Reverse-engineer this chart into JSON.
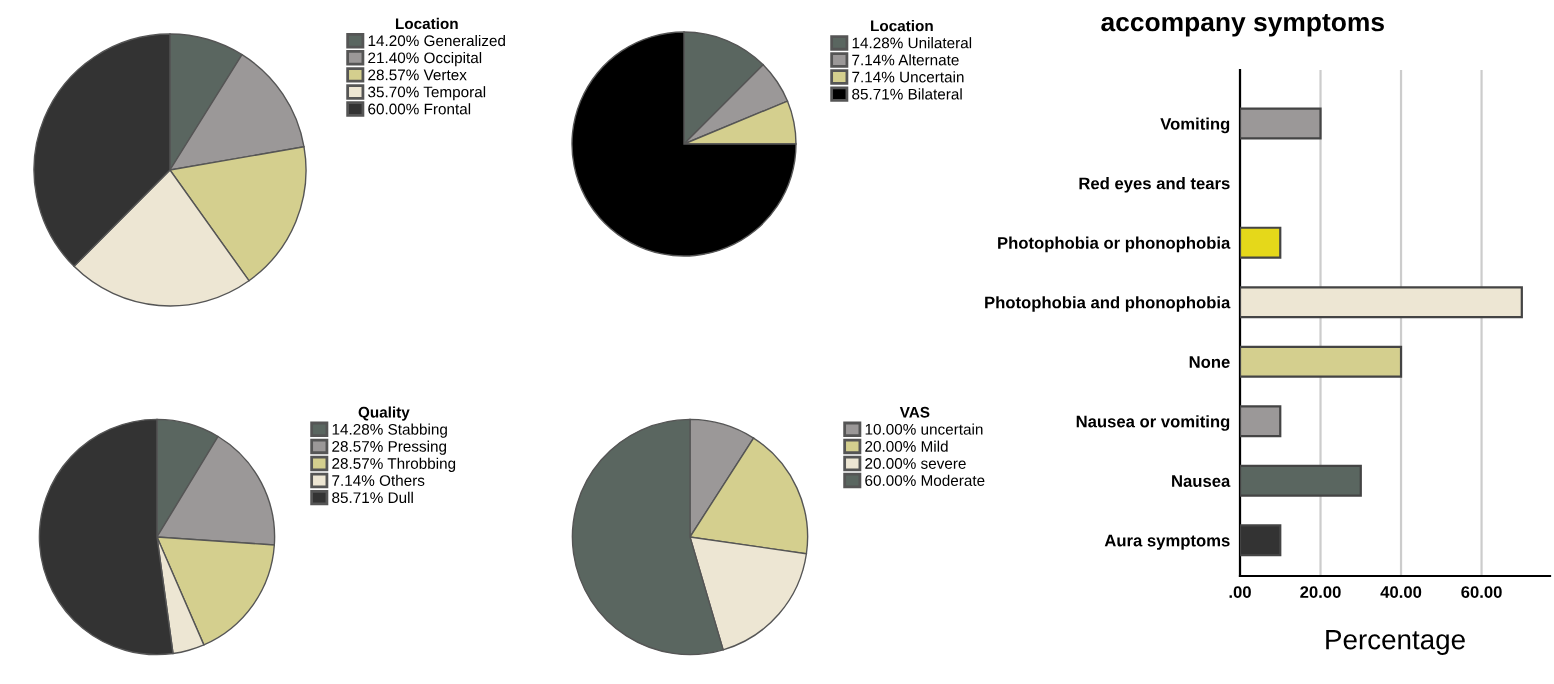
{
  "chart_data": [
    {
      "type": "pie",
      "legend_title": "Location",
      "legend": "top right",
      "categories": [
        "Generalized",
        "Occipital",
        "Vertex",
        "Temporal",
        "Frontal"
      ],
      "values": [
        14.2,
        21.4,
        28.57,
        35.7,
        60.0
      ],
      "value_labels": [
        "14.20%",
        "21.40%",
        "28.57%",
        "35.70%",
        "60.00%"
      ],
      "colors": [
        "#5a6660",
        "#9b9898",
        "#d4cf8e",
        "#ede6d3",
        "#333333"
      ]
    },
    {
      "type": "pie",
      "legend_title": "Location",
      "legend": "top right",
      "categories": [
        "Unilateral",
        "Alternate",
        "Uncertain",
        "Bilateral"
      ],
      "values": [
        14.28,
        7.14,
        7.14,
        85.71
      ],
      "value_labels": [
        "14.28%",
        "7.14%",
        "7.14%",
        "85.71%"
      ],
      "colors": [
        "#5a6660",
        "#9b9898",
        "#d4cf8e",
        "#000000"
      ]
    },
    {
      "type": "pie",
      "legend_title": "Quality",
      "legend": "top right",
      "categories": [
        "Stabbing",
        "Pressing",
        "Throbbing",
        "Others",
        "Dull"
      ],
      "values": [
        14.28,
        28.57,
        28.57,
        7.14,
        85.71
      ],
      "value_labels": [
        "14.28%",
        "28.57%",
        "28.57%",
        "7.14%",
        "85.71%"
      ],
      "colors": [
        "#5a6660",
        "#9b9898",
        "#d4cf8e",
        "#ede6d3",
        "#333333"
      ]
    },
    {
      "type": "pie",
      "legend_title": "VAS",
      "legend": "top right",
      "categories": [
        "uncertain",
        "Mild",
        "severe",
        "Moderate"
      ],
      "values": [
        10.0,
        20.0,
        20.0,
        60.0
      ],
      "value_labels": [
        "10.00%",
        "20.00%",
        "20.00%",
        "60.00%"
      ],
      "colors": [
        "#9b9898",
        "#d4cf8e",
        "#ede6d3",
        "#5a6660"
      ]
    },
    {
      "type": "bar",
      "orientation": "horizontal",
      "title": "accompany symptoms",
      "xlabel": "Percentage",
      "categories": [
        "Vomiting",
        "Red eyes and tears",
        "Photophobia or phonophobia",
        "Photophobia and phonophobia",
        "None",
        "Nausea or vomiting",
        "Nausea",
        "Aura symptoms"
      ],
      "values": [
        20,
        0,
        10,
        70,
        40,
        10,
        30,
        10
      ],
      "colors": [
        "#9b9898",
        "#9b9898",
        "#e5d81a",
        "#ede6d3",
        "#d4cf8e",
        "#9b9898",
        "#5a6660",
        "#333333"
      ],
      "xlim": [
        0,
        77
      ],
      "xticks": [
        {
          "value": 0,
          "label": ".00"
        },
        {
          "value": 20,
          "label": "20.00"
        },
        {
          "value": 40,
          "label": "40.00"
        },
        {
          "value": 60,
          "label": "60.00"
        }
      ],
      "grid": "x"
    }
  ]
}
